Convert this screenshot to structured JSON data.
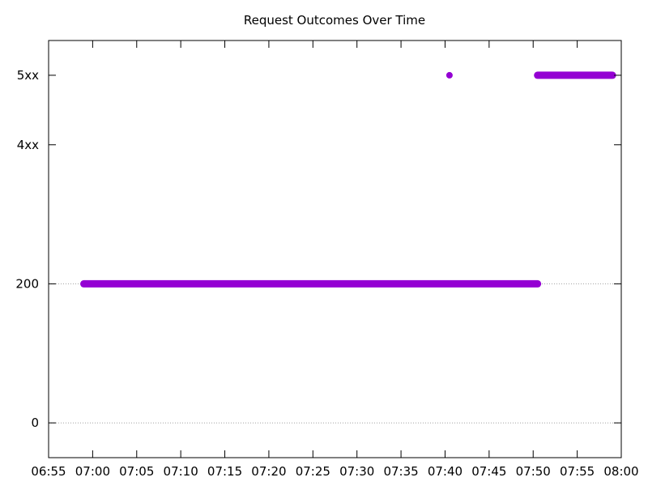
{
  "chart_data": {
    "type": "scatter",
    "title": "Request Outcomes Over Time",
    "xlabel": "",
    "ylabel": "",
    "x_ticks": [
      "06:55",
      "07:00",
      "07:05",
      "07:10",
      "07:15",
      "07:20",
      "07:25",
      "07:30",
      "07:35",
      "07:40",
      "07:45",
      "07:50",
      "07:55",
      "08:00"
    ],
    "xlim": [
      "06:55",
      "08:00"
    ],
    "y_ticks": [
      {
        "value": 0,
        "label": "0",
        "grid": true
      },
      {
        "value": 200,
        "label": "200",
        "grid": true
      },
      {
        "value": 400,
        "label": "4xx",
        "grid": false
      },
      {
        "value": 500,
        "label": "5xx",
        "grid": false
      }
    ],
    "ylim": [
      -50,
      550
    ],
    "grid": "horizontal dotted at 0 and 200",
    "color": "#9400d3",
    "series": [
      {
        "segments": [
          {
            "start": "06:59",
            "end": "07:50:30",
            "y": 200
          },
          {
            "start": "07:40:30",
            "end": "07:40:30",
            "y": 500
          },
          {
            "start": "07:50:30",
            "end": "07:59",
            "y": 500
          }
        ]
      }
    ]
  }
}
